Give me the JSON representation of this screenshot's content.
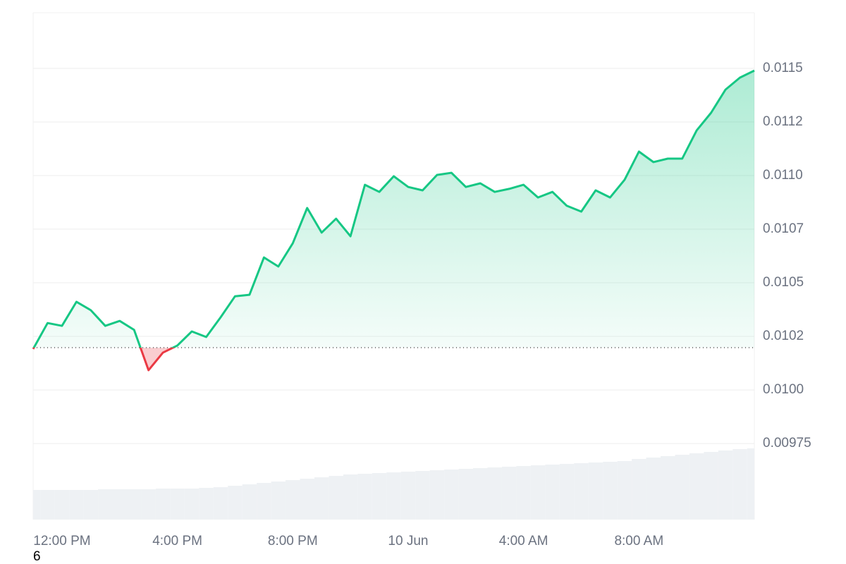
{
  "chart_data": {
    "type": "line",
    "x": [
      11,
      11.5,
      12,
      12.5,
      13,
      13.5,
      14,
      14.5,
      15,
      15.5,
      16,
      16.5,
      17,
      17.5,
      18,
      18.5,
      19,
      19.5,
      20,
      20.5,
      21,
      21.5,
      22,
      22.5,
      23,
      23.5,
      24,
      24.5,
      25,
      25.5,
      26,
      26.5,
      27,
      27.5,
      28,
      28.5,
      29,
      29.5,
      30,
      30.5,
      31,
      31.5,
      32,
      32.5,
      33,
      33.5,
      34,
      34.5,
      35,
      35.5,
      36
    ],
    "series": [
      {
        "name": "price",
        "color": "#16c784",
        "negative_color": "#ea3943",
        "values": [
          0.010191,
          0.010312,
          0.010299,
          0.010411,
          0.010372,
          0.010299,
          0.010322,
          0.01028,
          0.010092,
          0.010174,
          0.010207,
          0.010273,
          0.010247,
          0.010339,
          0.010437,
          0.010444,
          0.010618,
          0.010576,
          0.010684,
          0.010849,
          0.010734,
          0.010799,
          0.010717,
          0.010957,
          0.010924,
          0.010997,
          0.010947,
          0.010931,
          0.011003,
          0.011013,
          0.010947,
          0.010964,
          0.010924,
          0.010938,
          0.010957,
          0.010898,
          0.010924,
          0.010859,
          0.010832,
          0.010931,
          0.010898,
          0.01098,
          0.011112,
          0.011063,
          0.011079,
          0.011079,
          0.011211,
          0.011293,
          0.011401,
          0.011457,
          0.01149
        ]
      },
      {
        "name": "volume",
        "color": "#eef1f4",
        "axis": "volume",
        "values": [
          42,
          42,
          42,
          42,
          42,
          43,
          43,
          43,
          43,
          44,
          44,
          44,
          45,
          46,
          48,
          50,
          52,
          54,
          56,
          58,
          60,
          62,
          64,
          65,
          66,
          67,
          68,
          69,
          70,
          71,
          72,
          73,
          74,
          75,
          76,
          77,
          78,
          79,
          80,
          81,
          82,
          83,
          86,
          88,
          90,
          92,
          94,
          96,
          98,
          100,
          101
        ]
      }
    ],
    "baseline": 0.010197,
    "xlim": [
      11,
      36
    ],
    "xticks": [
      {
        "value": 12,
        "label": "12:00 PM"
      },
      {
        "value": 16,
        "label": "4:00 PM"
      },
      {
        "value": 20,
        "label": "8:00 PM"
      },
      {
        "value": 24,
        "label": "10 Jun"
      },
      {
        "value": 28,
        "label": "4:00 AM"
      },
      {
        "value": 32,
        "label": "8:00 AM"
      }
    ],
    "ylim": [
      0.009395,
      0.01176
    ],
    "yticks": [
      0.0115,
      {
        "value": 0.01125,
        "label": "0.0112"
      },
      {
        "value": 0.011,
        "label": "0.0110"
      },
      {
        "value": 0.01075,
        "label": "0.0107"
      },
      {
        "value": 0.0105,
        "label": "0.0105"
      },
      {
        "value": 0.01025,
        "label": "0.0102"
      },
      {
        "value": 0.01,
        "label": "0.0100"
      },
      0.00975
    ],
    "volume_lim": [
      0,
      150
    ],
    "grid": true,
    "footnote": "6"
  }
}
